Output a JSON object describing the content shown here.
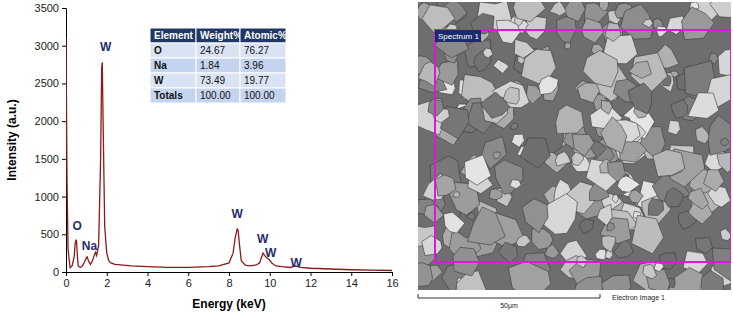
{
  "chart_data": {
    "type": "line",
    "x_label": "Energy (keV)",
    "y_label": "Intensity (a.u.)",
    "x": [
      0,
      0.05,
      0.1,
      0.2,
      0.3,
      0.4,
      0.45,
      0.5,
      0.52,
      0.55,
      0.6,
      0.7,
      0.8,
      0.9,
      1.0,
      1.04,
      1.1,
      1.2,
      1.3,
      1.4,
      1.45,
      1.5,
      1.6,
      1.7,
      1.75,
      1.78,
      1.82,
      1.9,
      2.0,
      2.1,
      2.2,
      2.4,
      2.8,
      3.2,
      4,
      5,
      6,
      7,
      7.5,
      8.0,
      8.2,
      8.3,
      8.4,
      8.45,
      8.5,
      8.6,
      8.8,
      9.0,
      9.3,
      9.5,
      9.67,
      9.8,
      9.95,
      10.1,
      10.3,
      10.6,
      11.0,
      11.28,
      11.5,
      12,
      13,
      14,
      15,
      16
    ],
    "values": [
      3100,
      1200,
      300,
      60,
      80,
      200,
      380,
      430,
      400,
      250,
      80,
      60,
      80,
      130,
      190,
      200,
      150,
      100,
      150,
      230,
      260,
      220,
      350,
      1500,
      2700,
      2780,
      2000,
      600,
      250,
      150,
      120,
      100,
      90,
      80,
      70,
      60,
      60,
      70,
      80,
      120,
      250,
      450,
      570,
      550,
      400,
      150,
      90,
      80,
      90,
      120,
      250,
      200,
      170,
      120,
      80,
      70,
      60,
      80,
      60,
      50,
      40,
      30,
      25,
      20
    ],
    "color": "#8b1a1a",
    "xlim": [
      0,
      16
    ],
    "xticks": [
      0,
      2,
      4,
      6,
      8,
      10,
      12,
      14,
      16
    ],
    "ylim": [
      0,
      3500
    ],
    "yticks": [
      0,
      500,
      1000,
      1500,
      2000,
      2500,
      3000,
      3500
    ],
    "annotations": [
      {
        "text": "O",
        "x": 0.55,
        "y": 560
      },
      {
        "text": "Na",
        "x": 1.15,
        "y": 290
      },
      {
        "text": "W",
        "x": 1.95,
        "y": 2930
      },
      {
        "text": "W",
        "x": 8.4,
        "y": 720
      },
      {
        "text": "W",
        "x": 9.65,
        "y": 390
      },
      {
        "text": "W",
        "x": 10.05,
        "y": 200
      },
      {
        "text": "W",
        "x": 11.3,
        "y": 70
      }
    ]
  },
  "table": {
    "header": [
      "Element",
      "Weight%",
      "Atomic%"
    ],
    "rows": [
      [
        "O",
        "24.67",
        "76.27"
      ],
      [
        "Na",
        "1.84",
        "3.96"
      ],
      [
        "W",
        "73.49",
        "19.77"
      ],
      [
        "Totals",
        "100.00",
        "100.00"
      ]
    ]
  },
  "micrograph": {
    "region_label": "Spectrum 1",
    "scale_bar": "50µm",
    "caption": "Electron Image 1"
  }
}
